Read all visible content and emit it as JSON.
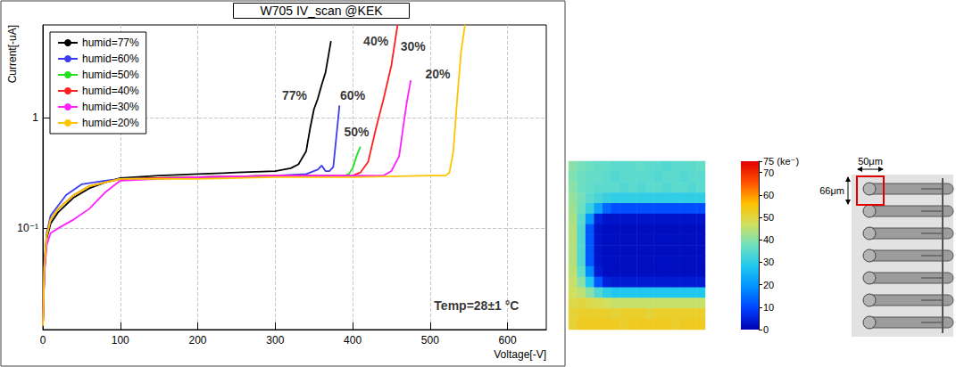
{
  "chart_data": [
    {
      "type": "line",
      "title": "W705 IV_scan @KEK",
      "x_label": "Voltage[-V]",
      "y_label": "Current[-uA]",
      "xlim": [
        0,
        650
      ],
      "xticks": [
        0,
        100,
        200,
        300,
        400,
        500,
        600
      ],
      "ylim": [
        0.012,
        7
      ],
      "yticks": [
        {
          "value": 0.1,
          "label": "10⁻¹"
        },
        1
      ],
      "log": "y",
      "grid": true,
      "legend": "upper left",
      "series": [
        {
          "name": "humid=77%",
          "color": "#000000",
          "x": [
            0,
            2,
            5,
            10,
            20,
            40,
            60,
            80,
            100,
            150,
            200,
            250,
            300,
            320,
            330,
            340,
            345,
            350,
            355,
            360,
            365,
            372
          ],
          "values": [
            0.013,
            0.04,
            0.08,
            0.11,
            0.14,
            0.19,
            0.23,
            0.26,
            0.285,
            0.3,
            0.31,
            0.32,
            0.33,
            0.35,
            0.38,
            0.5,
            0.8,
            1.2,
            1.5,
            2.0,
            2.6,
            5.0
          ]
        },
        {
          "name": "humid=60%",
          "color": "#3c3cf0",
          "x": [
            0,
            2,
            5,
            10,
            30,
            50,
            80,
            100,
            200,
            300,
            340,
            355,
            360,
            365,
            370,
            375,
            380,
            383
          ],
          "values": [
            0.013,
            0.05,
            0.09,
            0.13,
            0.2,
            0.25,
            0.27,
            0.28,
            0.29,
            0.3,
            0.31,
            0.34,
            0.37,
            0.33,
            0.33,
            0.36,
            0.8,
            1.3
          ]
        },
        {
          "name": "humid=50%",
          "color": "#22e022",
          "x": [
            0,
            2,
            5,
            10,
            20,
            40,
            60,
            80,
            100,
            200,
            300,
            390,
            395,
            400,
            405,
            410
          ],
          "values": [
            0.013,
            0.045,
            0.085,
            0.12,
            0.15,
            0.2,
            0.24,
            0.26,
            0.28,
            0.29,
            0.3,
            0.3,
            0.31,
            0.35,
            0.45,
            0.55
          ]
        },
        {
          "name": "humid=40%",
          "color": "#ff2020",
          "x": [
            0,
            2,
            5,
            10,
            20,
            40,
            60,
            80,
            100,
            200,
            300,
            400,
            410,
            420,
            430,
            440,
            450,
            458
          ],
          "values": [
            0.013,
            0.045,
            0.085,
            0.12,
            0.15,
            0.2,
            0.24,
            0.26,
            0.28,
            0.29,
            0.3,
            0.3,
            0.32,
            0.4,
            0.8,
            1.5,
            3.0,
            7.0
          ]
        },
        {
          "name": "humid=30%",
          "color": "#ff20ff",
          "x": [
            0,
            2,
            5,
            10,
            20,
            40,
            60,
            80,
            100,
            200,
            300,
            440,
            450,
            460,
            465,
            470,
            475
          ],
          "values": [
            0.013,
            0.04,
            0.07,
            0.09,
            0.1,
            0.12,
            0.15,
            0.21,
            0.27,
            0.29,
            0.3,
            0.3,
            0.33,
            0.45,
            0.8,
            1.4,
            2.2
          ]
        },
        {
          "name": "humid=20%",
          "color": "#ffc400",
          "x": [
            0,
            2,
            5,
            10,
            20,
            40,
            60,
            80,
            100,
            200,
            300,
            400,
            500,
            520,
            525,
            530,
            535,
            540,
            545
          ],
          "values": [
            0.013,
            0.045,
            0.085,
            0.12,
            0.15,
            0.2,
            0.24,
            0.26,
            0.28,
            0.28,
            0.29,
            0.29,
            0.3,
            0.3,
            0.32,
            0.5,
            1.5,
            4.0,
            7.0
          ]
        }
      ],
      "annotations": [
        {
          "text": "77%",
          "x": 325,
          "y": 1.6
        },
        {
          "text": "60%",
          "x": 400,
          "y": 1.6
        },
        {
          "text": "50%",
          "x": 405,
          "y": 0.75
        },
        {
          "text": "40%",
          "x": 430,
          "y": 5
        },
        {
          "text": "30%",
          "x": 478,
          "y": 4.5
        },
        {
          "text": "20%",
          "x": 510,
          "y": 2.5
        },
        {
          "text": "Temp=28±1 °C",
          "x": 560,
          "y": 0.02
        }
      ]
    },
    {
      "type": "heatmap",
      "tick_labels": false,
      "cells": [
        [
          40,
          38,
          37,
          36,
          36,
          35,
          35,
          35,
          36,
          35,
          35,
          34,
          35,
          35,
          35,
          36
        ],
        [
          39,
          37,
          36,
          36,
          35,
          34,
          35,
          35,
          35,
          35,
          34,
          35,
          35,
          34,
          35,
          35
        ],
        [
          40,
          37,
          36,
          35,
          35,
          35,
          34,
          35,
          34,
          35,
          35,
          34,
          35,
          35,
          34,
          35
        ],
        [
          41,
          38,
          35,
          33,
          31,
          30,
          30,
          30,
          30,
          30,
          30,
          30,
          30,
          30,
          30,
          30
        ],
        [
          42,
          37,
          31,
          22,
          14,
          11,
          11,
          11,
          11,
          11,
          11,
          11,
          11,
          11,
          11,
          11
        ],
        [
          43,
          35,
          20,
          5,
          3,
          3,
          3,
          3,
          3,
          3,
          3,
          3,
          3,
          3,
          3,
          3
        ],
        [
          44,
          34,
          12,
          3,
          2,
          2,
          2,
          2,
          2,
          2,
          2,
          2,
          2,
          2,
          2,
          2
        ],
        [
          44,
          34,
          12,
          3,
          2,
          2,
          2,
          2,
          2,
          2,
          2,
          2,
          2,
          2,
          2,
          2
        ],
        [
          44,
          34,
          12,
          3,
          2,
          2,
          2,
          2,
          2,
          2,
          2,
          2,
          2,
          2,
          2,
          2
        ],
        [
          44,
          34,
          12,
          3,
          2,
          2,
          2,
          2,
          2,
          2,
          2,
          2,
          2,
          2,
          2,
          2
        ],
        [
          45,
          36,
          18,
          4,
          2,
          2,
          2,
          2,
          2,
          2,
          2,
          2,
          2,
          2,
          2,
          2
        ],
        [
          46,
          40,
          28,
          12,
          5,
          4,
          4,
          4,
          4,
          4,
          4,
          4,
          4,
          4,
          4,
          4
        ],
        [
          47,
          45,
          40,
          34,
          30,
          28,
          28,
          28,
          28,
          28,
          28,
          28,
          28,
          28,
          28,
          28
        ],
        [
          49,
          50,
          49,
          48,
          47,
          46,
          46,
          46,
          46,
          46,
          46,
          46,
          46,
          46,
          46,
          46
        ],
        [
          51,
          52,
          52,
          52,
          52,
          51,
          52,
          52,
          52,
          51,
          52,
          52,
          52,
          52,
          52,
          52
        ],
        [
          51,
          53,
          53,
          53,
          53,
          53,
          52,
          53,
          53,
          53,
          53,
          53,
          52,
          53,
          53,
          53
        ]
      ],
      "colorbar": {
        "range": [
          0,
          75
        ],
        "ticks": [
          0,
          10,
          20,
          30,
          40,
          50,
          60,
          70,
          {
            "value": 75,
            "label": "75 (ke⁻)"
          }
        ]
      }
    }
  ],
  "micrograph": {
    "width_label": "50μm",
    "height_label": "66μm"
  }
}
